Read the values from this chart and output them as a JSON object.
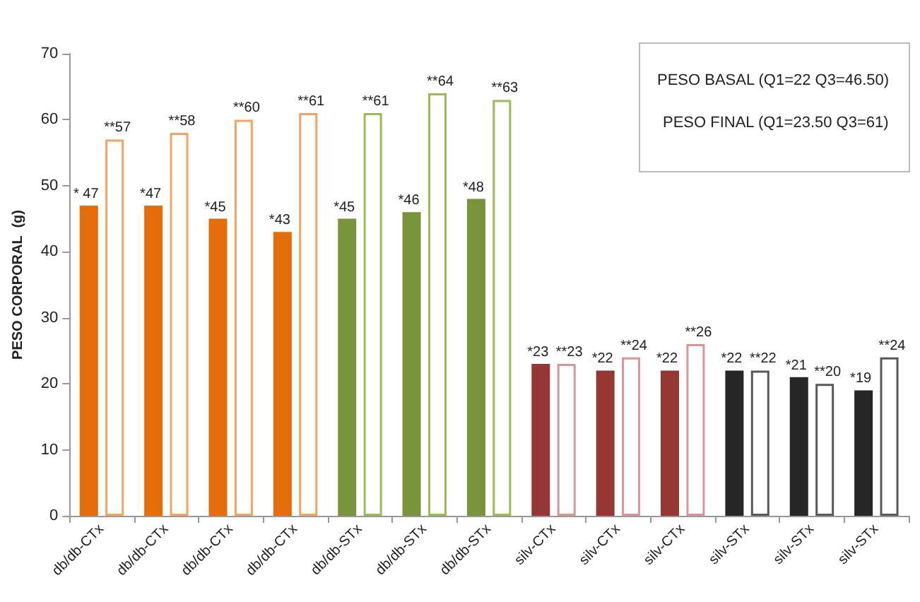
{
  "chart_data": {
    "type": "bar",
    "ylabel": "PESO CORPORAL  (g)",
    "categories": [
      "db/db-CTx",
      "db/db-CTx",
      "db/db-CTx",
      "db/db-CTx",
      "db/db-STx",
      "db/db-STx",
      "db/db-STx",
      "silv-CTx",
      "silv-CTx",
      "silv-CTx",
      "silv-STx",
      "silv-STx",
      "silv-STx"
    ],
    "series": [
      {
        "colors": [
          "#e46c0a",
          "#e46c0a",
          "#e46c0a",
          "#e46c0a",
          "#77933c",
          "#77933c",
          "#77933c",
          "#953735",
          "#953735",
          "#953735",
          "#262626",
          "#262626",
          "#262626"
        ],
        "values": [
          47,
          47,
          45,
          43,
          45,
          46,
          48,
          23,
          22,
          22,
          22,
          21,
          19
        ],
        "value_labels": [
          "* 47",
          "*47",
          "*45",
          "*43",
          "*45",
          "*46",
          "*48",
          "*23",
          "*22",
          "*22",
          "*22",
          "*21",
          "*19"
        ]
      },
      {
        "colors": [
          "#f4a460",
          "#f4a460",
          "#f4a460",
          "#f4a460",
          "#9bbb59",
          "#9bbb59",
          "#9bbb59",
          "#d99694",
          "#d99694",
          "#d99694",
          "#595959",
          "#595959",
          "#595959"
        ],
        "values": [
          57,
          58,
          60,
          61,
          61,
          64,
          63,
          23,
          24,
          26,
          22,
          20,
          24
        ],
        "value_labels": [
          "**57",
          "**58",
          "**60",
          "**61",
          "**61",
          "**64",
          "**63",
          "**23",
          "**24",
          "**26",
          "**22",
          "**20",
          "**24"
        ]
      }
    ],
    "ylim": [
      0,
      70
    ],
    "yticks": [
      0,
      10,
      20,
      30,
      40,
      50,
      60,
      70
    ],
    "grid": false,
    "annotations": [
      "PESO BASAL (Q1=22 Q3=46.50)",
      "PESO FINAL (Q1=23.50 Q3=61)"
    ]
  }
}
